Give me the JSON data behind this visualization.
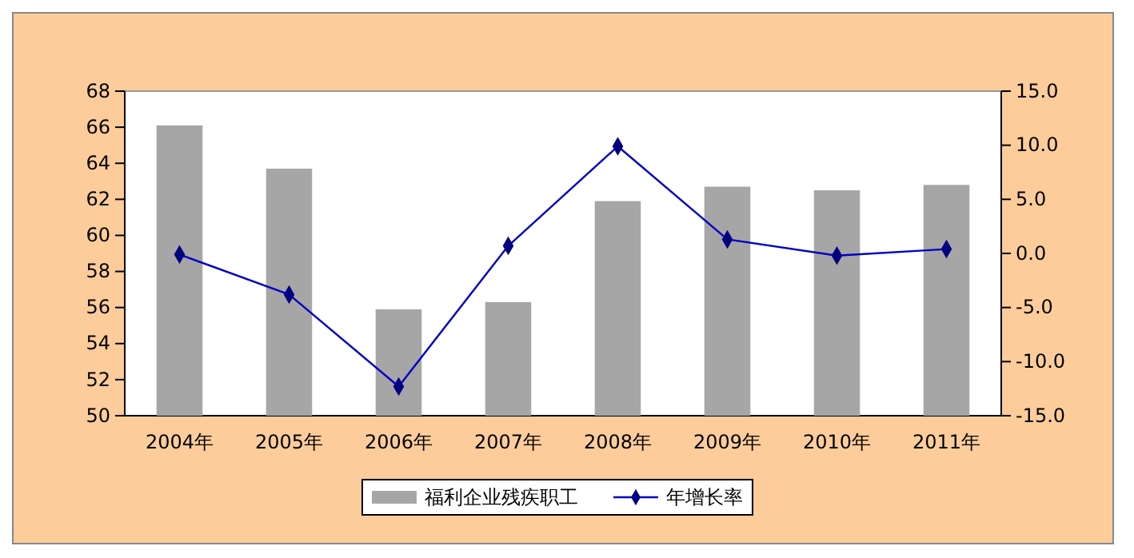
{
  "chart_data": {
    "type": "bar",
    "categories": [
      "2004年",
      "2005年",
      "2006年",
      "2007年",
      "2008年",
      "2009年",
      "2010年",
      "2011年"
    ],
    "series": [
      {
        "name": "福利企业残疾职工",
        "color": "#a6a6a6",
        "values": [
          66.1,
          63.7,
          55.9,
          56.3,
          61.9,
          62.7,
          62.5,
          62.8
        ]
      },
      {
        "name": "年增长率",
        "type": "line",
        "axis": "y2",
        "color": "#000080",
        "marker": "diamond",
        "values": [
          -0.1,
          -3.8,
          -12.3,
          0.7,
          9.9,
          1.3,
          -0.2,
          0.4
        ]
      }
    ],
    "ylim": [
      50,
      68
    ],
    "yticks": [
      50,
      52,
      54,
      56,
      58,
      60,
      62,
      64,
      66,
      68
    ],
    "y2lim": [
      -15,
      15
    ],
    "y2ticks": [
      {
        "value": -15,
        "label": "-15.0"
      },
      {
        "value": -10,
        "label": "-10.0"
      },
      {
        "value": -5,
        "label": "-5.0"
      },
      {
        "value": 0,
        "label": "0.0"
      },
      {
        "value": 5,
        "label": "5.0"
      },
      {
        "value": 10,
        "label": "10.0"
      },
      {
        "value": 15,
        "label": "15.0"
      }
    ],
    "legend": "bottom"
  }
}
